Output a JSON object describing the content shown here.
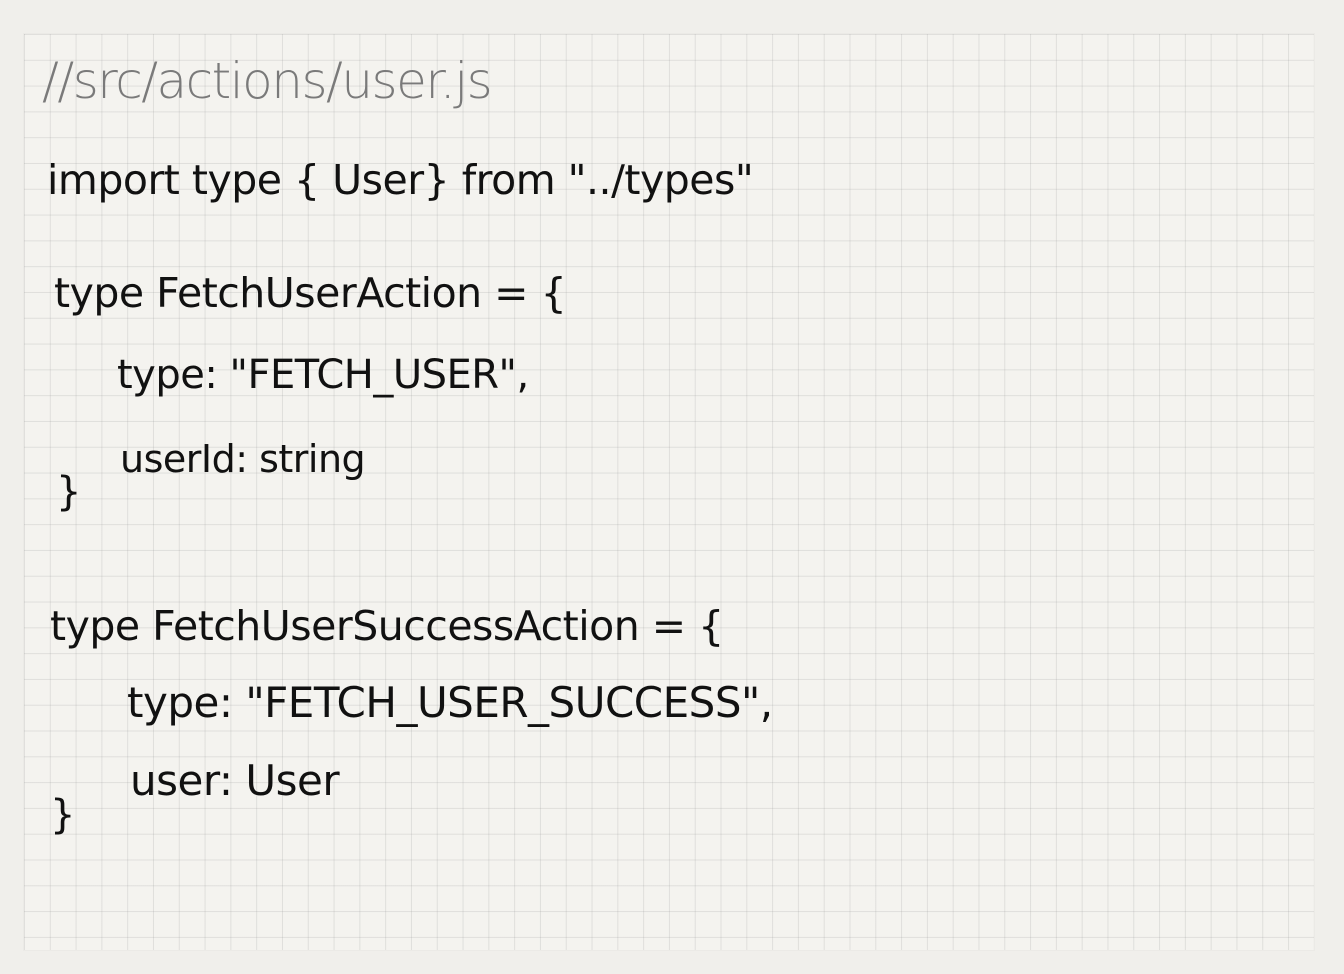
{
  "code": {
    "comment": "//src/actions/user.js",
    "import_line": "import type { User} from \"../types\"",
    "fetch_user_action": {
      "declaration": "type FetchUserAction = {",
      "field_type": "type: \"FETCH_USER\",",
      "field_user_id": "userId: string",
      "closing_brace": "}"
    },
    "fetch_user_success_action": {
      "declaration": "type FetchUserSuccessAction = {",
      "field_type": "type: \"FETCH_USER_SUCCESS\",",
      "field_user": "user: User",
      "closing_brace": "}"
    }
  }
}
